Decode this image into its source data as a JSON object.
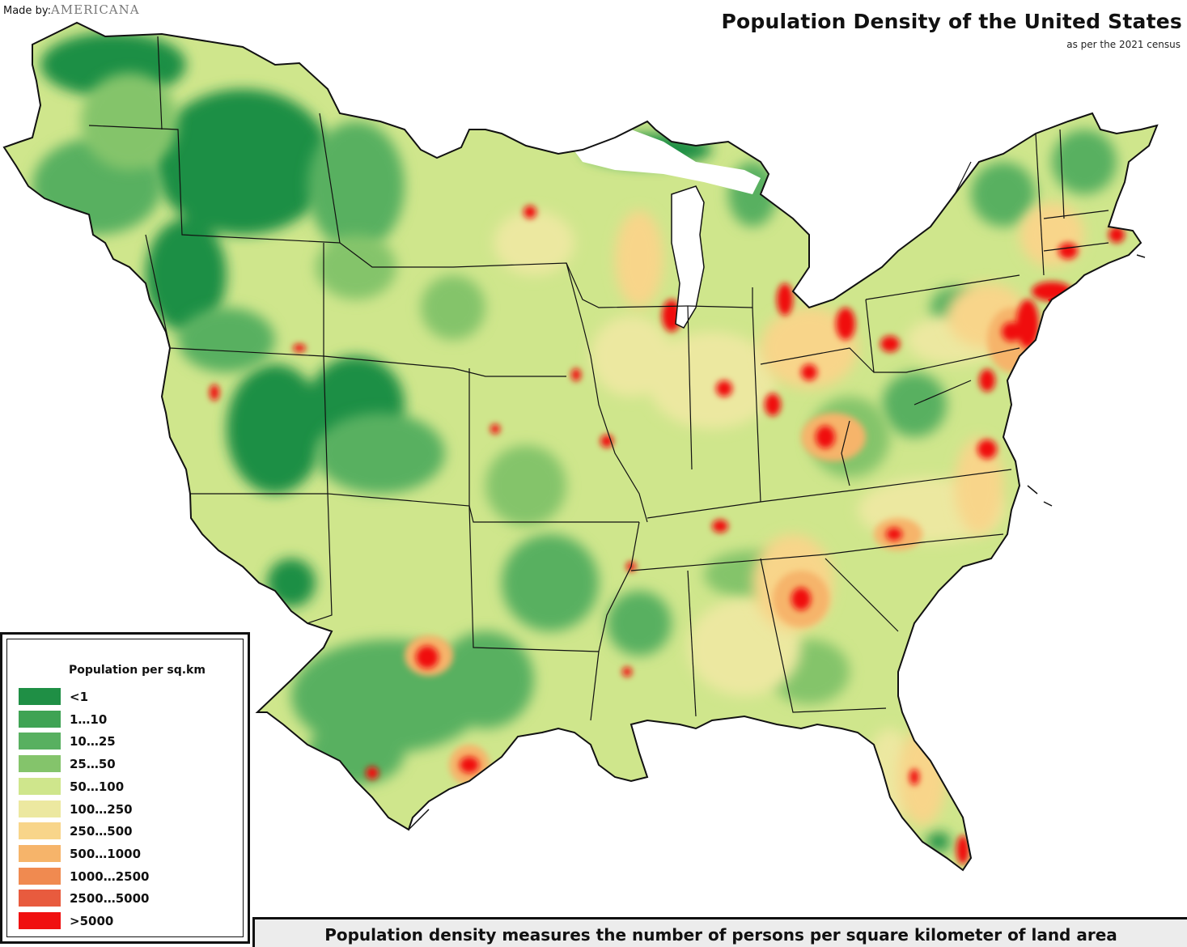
{
  "header": {
    "credit_prefix": "Made by:",
    "credit_brand": "AMERICANA",
    "title": "Population Density of the United States",
    "subtitle": "as per the 2021 census"
  },
  "legend": {
    "title": "Population per sq.km",
    "items": [
      {
        "label": "<1",
        "color": "#1f8f45"
      },
      {
        "label": "1…10",
        "color": "#3fa354"
      },
      {
        "label": "10…25",
        "color": "#58b060"
      },
      {
        "label": "25…50",
        "color": "#84c46b"
      },
      {
        "label": "50…100",
        "color": "#cfe68c"
      },
      {
        "label": "100…250",
        "color": "#ece8a0"
      },
      {
        "label": "250…500",
        "color": "#f8d58a"
      },
      {
        "label": "500…1000",
        "color": "#f6b46a"
      },
      {
        "label": "1000…2500",
        "color": "#f08a50"
      },
      {
        "label": "2500…5000",
        "color": "#e85b3e"
      },
      {
        "label": ">5000",
        "color": "#f01010"
      }
    ]
  },
  "footer": {
    "text": "Population density measures the number of persons per square kilometer of land area"
  },
  "map": {
    "state_border_color": "#111111",
    "hot_spot_color": "#f01010"
  }
}
